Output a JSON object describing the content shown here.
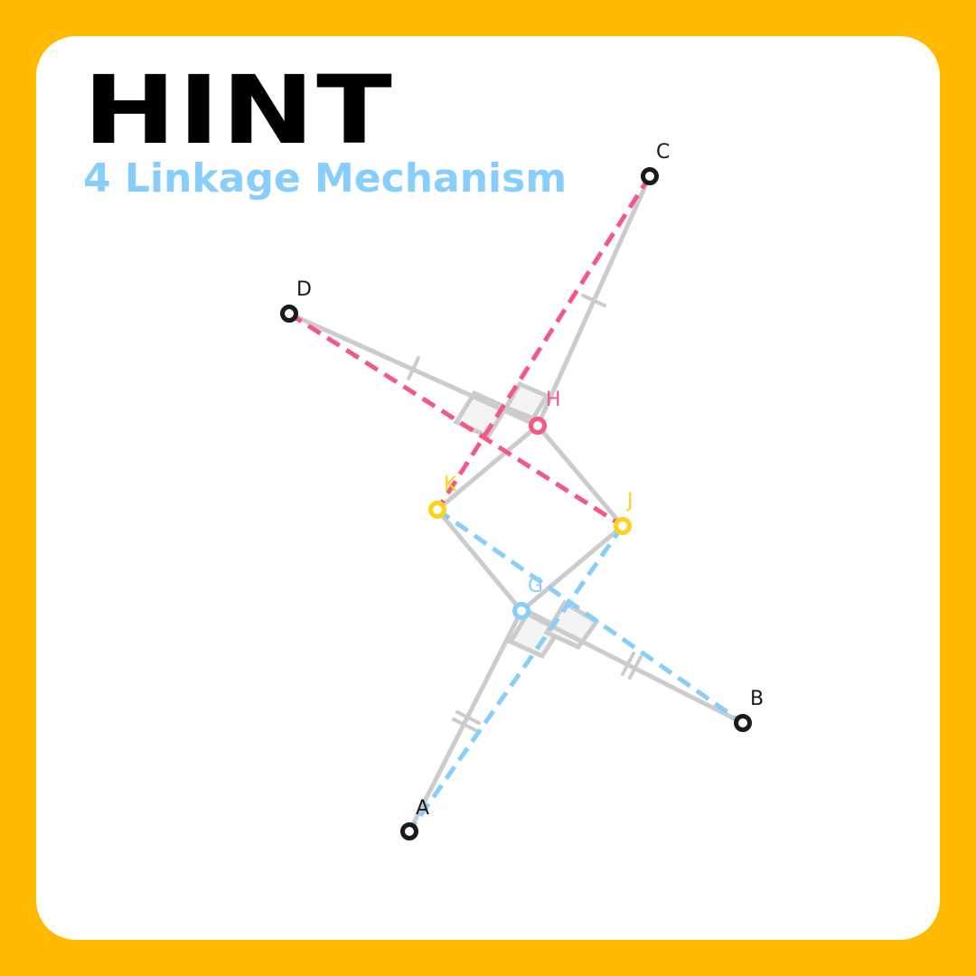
{
  "header": {
    "title": "HINT",
    "subtitle": "4 Linkage Mechanism"
  },
  "colors": {
    "background": "#FFBA00",
    "card": "#FFFFFF",
    "title": "#000000",
    "subtitle": "#87CEFA",
    "link": "#CCCCCC",
    "pink": "#F25A85",
    "blue": "#87CEFA",
    "yellow": "#FFD21A",
    "anchor": "#1A1A1A"
  },
  "points": {
    "A": {
      "label": "A"
    },
    "B": {
      "label": "B"
    },
    "C": {
      "label": "C"
    },
    "D": {
      "label": "D"
    },
    "G": {
      "label": "G"
    },
    "H": {
      "label": "H"
    },
    "J": {
      "label": "J"
    },
    "K": {
      "label": "K"
    }
  }
}
